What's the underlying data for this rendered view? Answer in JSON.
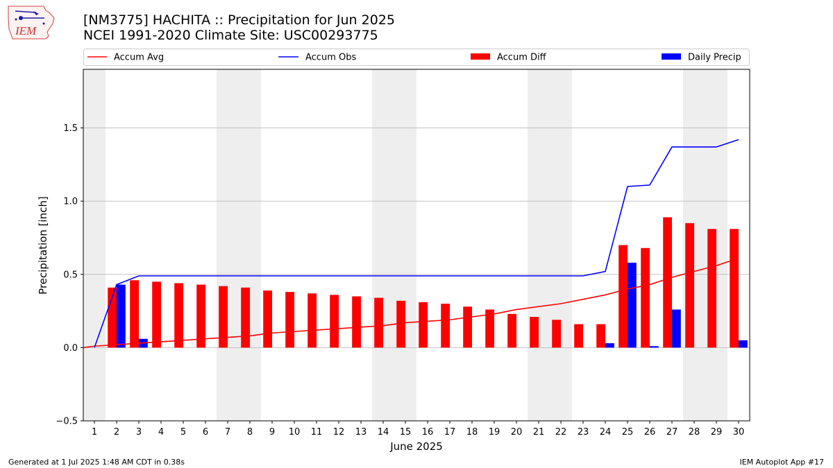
{
  "logo": {
    "text": "IEM"
  },
  "title": "[NM3775] HACHITA :: Precipitation for Jun 2025",
  "subtitle": "NCEI 1991-2020 Climate Site: USC00293775",
  "footer": {
    "left": "Generated at 1 Jul 2025 1:48 AM CDT in 0.38s",
    "right": "IEM Autoplot App #17"
  },
  "colors": {
    "accum_avg": "#ff0000",
    "accum_obs": "#0000ff",
    "accum_diff": "#ff0000",
    "daily_precip": "#0000ff",
    "weekend_shade": "#eeeeee"
  },
  "chart_data": {
    "type": "bar",
    "xlabel": "June 2025",
    "ylabel": "Precipitation [inch]",
    "xlim": [
      0.5,
      30.5
    ],
    "ylim": [
      -0.5,
      1.9
    ],
    "yticks": [
      -0.5,
      0.0,
      0.5,
      1.0,
      1.5
    ],
    "ytick_labels": [
      "−0.5",
      "0.0",
      "0.5",
      "1.0",
      "1.5"
    ],
    "x": [
      1,
      2,
      3,
      4,
      5,
      6,
      7,
      8,
      9,
      10,
      11,
      12,
      13,
      14,
      15,
      16,
      17,
      18,
      19,
      20,
      21,
      22,
      23,
      24,
      25,
      26,
      27,
      28,
      29,
      30
    ],
    "weekend_days": [
      1,
      7,
      8,
      14,
      15,
      21,
      22,
      28,
      29
    ],
    "legend": {
      "placement": "top, above plot",
      "entries": [
        "Accum Avg",
        "Accum Obs",
        "Accum Diff",
        "Daily Precip"
      ]
    },
    "grid": "horizontal",
    "series": [
      {
        "name": "Accum Avg",
        "type": "line",
        "values": [
          0.01,
          0.02,
          0.03,
          0.04,
          0.05,
          0.06,
          0.07,
          0.08,
          0.1,
          0.11,
          0.12,
          0.13,
          0.14,
          0.15,
          0.17,
          0.18,
          0.19,
          0.21,
          0.23,
          0.26,
          0.28,
          0.3,
          0.33,
          0.36,
          0.4,
          0.43,
          0.48,
          0.52,
          0.56,
          0.61
        ]
      },
      {
        "name": "Accum Obs",
        "type": "line",
        "values": [
          0.0,
          0.43,
          0.49,
          0.49,
          0.49,
          0.49,
          0.49,
          0.49,
          0.49,
          0.49,
          0.49,
          0.49,
          0.49,
          0.49,
          0.49,
          0.49,
          0.49,
          0.49,
          0.49,
          0.49,
          0.49,
          0.49,
          0.49,
          0.52,
          1.1,
          1.11,
          1.37,
          1.37,
          1.37,
          1.42
        ]
      },
      {
        "name": "Accum Diff",
        "type": "bar",
        "values": [
          null,
          0.41,
          0.46,
          0.45,
          0.44,
          0.43,
          0.42,
          0.41,
          0.39,
          0.38,
          0.37,
          0.36,
          0.35,
          0.34,
          0.32,
          0.31,
          0.3,
          0.28,
          0.26,
          0.23,
          0.21,
          0.19,
          0.16,
          0.16,
          0.7,
          0.68,
          0.89,
          0.85,
          0.81,
          0.81
        ]
      },
      {
        "name": "Daily Precip",
        "type": "bar",
        "values": [
          0.0,
          0.43,
          0.06,
          0.0,
          0.0,
          0.0,
          0.0,
          0.0,
          0.0,
          0.0,
          0.0,
          0.0,
          0.0,
          0.0,
          0.0,
          0.0,
          0.0,
          0.0,
          0.0,
          0.0,
          0.0,
          0.0,
          0.0,
          0.03,
          0.58,
          0.01,
          0.26,
          0.0,
          0.0,
          0.05
        ]
      }
    ]
  }
}
